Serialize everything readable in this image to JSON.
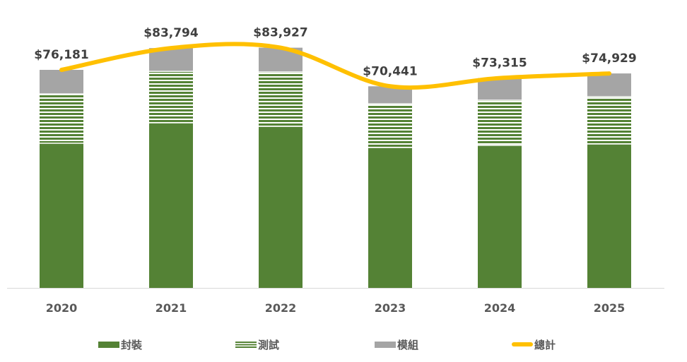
{
  "chart_data": {
    "type": "bar",
    "stacked": true,
    "categories": [
      "2020",
      "2021",
      "2022",
      "2023",
      "2024",
      "2025"
    ],
    "series": [
      {
        "name": "封裝",
        "kind": "bar",
        "color": "#548235",
        "pattern": "solid",
        "values": [
          50530,
          57680,
          56450,
          49050,
          49790,
          50290
        ]
      },
      {
        "name": "測試",
        "kind": "bar",
        "color": "#548235",
        "pattern": "horizontal-stripes",
        "values": [
          17250,
          17990,
          18980,
          15280,
          15780,
          16520
        ]
      },
      {
        "name": "模組",
        "kind": "bar",
        "color": "#A5A5A5",
        "pattern": "solid",
        "values": [
          8401,
          8124,
          8497,
          6111,
          7745,
          8119
        ]
      },
      {
        "name": "總計",
        "kind": "line",
        "color": "#FFC000",
        "smooth": true,
        "values": [
          76181,
          83794,
          83927,
          70441,
          73315,
          74929
        ]
      }
    ],
    "data_labels": [
      "$76,181",
      "$83,794",
      "$83,927",
      "$70,441",
      "$73,315",
      "$74,929"
    ],
    "title": "",
    "xlabel": "",
    "ylabel": "",
    "ylim": [
      0,
      100000
    ],
    "grid": false,
    "legend": "bottom"
  }
}
